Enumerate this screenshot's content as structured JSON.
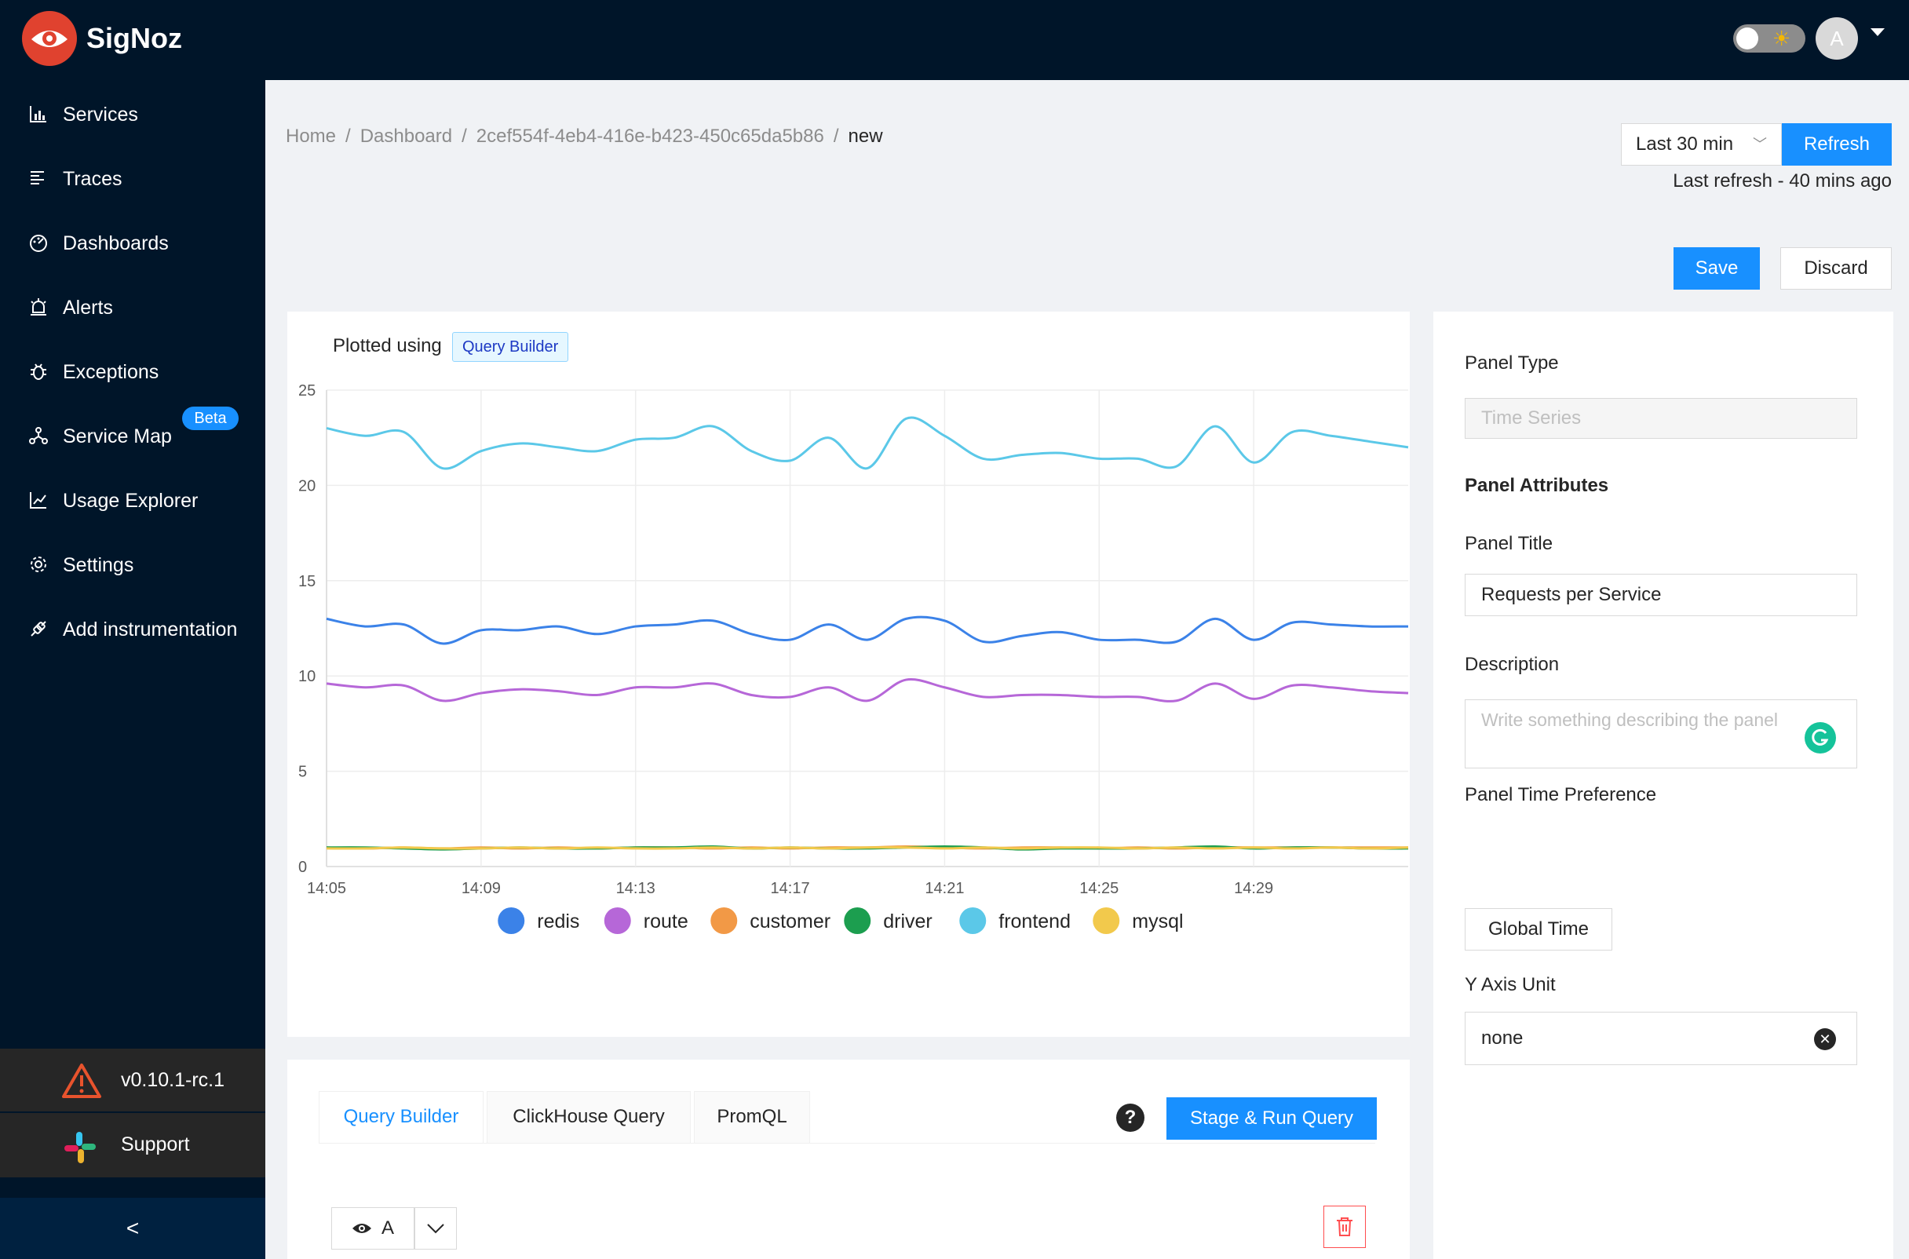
{
  "app": {
    "brand": "SigNoz",
    "avatar_letter": "A"
  },
  "sidebar": {
    "items": [
      {
        "label": "Services",
        "icon": "bar-chart-icon"
      },
      {
        "label": "Traces",
        "icon": "align-left-icon"
      },
      {
        "label": "Dashboards",
        "icon": "dashboard-icon"
      },
      {
        "label": "Alerts",
        "icon": "alert-icon"
      },
      {
        "label": "Exceptions",
        "icon": "bug-icon"
      },
      {
        "label": "Service Map",
        "icon": "deployment-unit-icon"
      },
      {
        "label": "Usage Explorer",
        "icon": "line-chart-icon"
      },
      {
        "label": "Settings",
        "icon": "settings-icon"
      },
      {
        "label": "Add instrumentation",
        "icon": "api-icon"
      }
    ],
    "beta_badge": "Beta",
    "version": "v0.10.1-rc.1",
    "support": "Support",
    "collapse": "<"
  },
  "breadcrumb": {
    "home": "Home",
    "dashboard": "Dashboard",
    "id": "2cef554f-4eb4-416e-b423-450c65da5b86",
    "current": "new",
    "separator": "/"
  },
  "toolbar": {
    "time_range": "Last 30 min",
    "refresh": "Refresh",
    "last_refresh": "Last refresh - 40 mins ago",
    "save": "Save",
    "discard": "Discard"
  },
  "chart_header": {
    "plotted_using": "Plotted using",
    "source_tag": "Query Builder"
  },
  "chart_data": {
    "type": "line",
    "x": [
      "14:05",
      "14:06",
      "14:07",
      "14:08",
      "14:09",
      "14:10",
      "14:11",
      "14:12",
      "14:13",
      "14:14",
      "14:15",
      "14:16",
      "14:17",
      "14:18",
      "14:19",
      "14:20",
      "14:21",
      "14:22",
      "14:23",
      "14:24",
      "14:25",
      "14:26",
      "14:27",
      "14:28",
      "14:29",
      "14:30",
      "14:31",
      "14:32",
      "14:33"
    ],
    "xticks": [
      "14:05",
      "14:09",
      "14:13",
      "14:17",
      "14:21",
      "14:25",
      "14:29"
    ],
    "ylim": [
      0,
      25
    ],
    "yticks": [
      0,
      5,
      10,
      15,
      20,
      25
    ],
    "grid": true,
    "legend_position": "bottom",
    "series": [
      {
        "name": "redis",
        "color": "#3b82e8",
        "values": [
          13.0,
          12.6,
          12.7,
          11.7,
          12.4,
          12.4,
          12.6,
          12.2,
          12.6,
          12.7,
          12.9,
          12.2,
          11.9,
          12.7,
          11.9,
          13.0,
          12.9,
          11.8,
          12.1,
          12.3,
          11.9,
          11.9,
          11.8,
          13.0,
          11.9,
          12.8,
          12.7,
          12.6,
          12.6
        ]
      },
      {
        "name": "route",
        "color": "#b667d8",
        "values": [
          9.6,
          9.4,
          9.5,
          8.7,
          9.1,
          9.3,
          9.2,
          9.0,
          9.4,
          9.4,
          9.6,
          9.0,
          8.9,
          9.4,
          8.7,
          9.8,
          9.4,
          8.9,
          9.0,
          9.0,
          8.9,
          8.9,
          8.7,
          9.6,
          8.8,
          9.5,
          9.4,
          9.2,
          9.1
        ]
      },
      {
        "name": "customer",
        "color": "#f29946",
        "values": [
          1.0,
          0.95,
          1.0,
          0.95,
          1.0,
          0.95,
          1.0,
          0.95,
          1.0,
          1.0,
          0.95,
          1.0,
          0.95,
          1.0,
          1.0,
          1.05,
          1.0,
          0.95,
          1.0,
          1.0,
          0.95,
          1.0,
          0.95,
          1.0,
          1.0,
          1.0,
          1.0,
          1.0,
          1.0
        ]
      },
      {
        "name": "driver",
        "color": "#1c9e4f",
        "values": [
          1.0,
          1.0,
          0.95,
          0.9,
          0.95,
          1.0,
          0.95,
          0.95,
          1.0,
          1.0,
          1.05,
          0.95,
          1.0,
          0.95,
          0.95,
          1.0,
          1.05,
          1.0,
          0.9,
          0.95,
          0.95,
          0.95,
          1.0,
          1.05,
          0.95,
          1.0,
          1.0,
          0.95,
          0.95
        ]
      },
      {
        "name": "frontend",
        "color": "#5bc8e8",
        "values": [
          23.0,
          22.6,
          22.8,
          20.9,
          21.8,
          22.2,
          22.0,
          21.8,
          22.4,
          22.5,
          23.1,
          21.8,
          21.3,
          22.5,
          20.9,
          23.5,
          22.6,
          21.4,
          21.6,
          21.7,
          21.4,
          21.4,
          21.0,
          23.1,
          21.2,
          22.8,
          22.6,
          22.3,
          22.0
        ]
      },
      {
        "name": "mysql",
        "color": "#f2c94c",
        "values": [
          0.95,
          0.95,
          1.0,
          0.95,
          0.95,
          1.0,
          0.95,
          1.0,
          0.95,
          0.95,
          1.0,
          0.95,
          1.0,
          0.95,
          1.0,
          1.0,
          0.95,
          1.0,
          0.95,
          1.0,
          1.0,
          0.95,
          1.0,
          0.95,
          1.0,
          0.95,
          1.0,
          0.95,
          1.0
        ]
      }
    ]
  },
  "query_tabs": {
    "builder": "Query Builder",
    "clickhouse": "ClickHouse Query",
    "promql": "PromQL",
    "help": "?",
    "stage_run": "Stage & Run Query",
    "query_name": "A"
  },
  "panel": {
    "type_label": "Panel Type",
    "type_value": "Time Series",
    "attributes_heading": "Panel Attributes",
    "title_label": "Panel Title",
    "title_value": "Requests per Service",
    "description_label": "Description",
    "description_placeholder": "Write something describing the  panel",
    "time_pref_label": "Panel Time Preference",
    "time_pref_value": "Global Time",
    "y_unit_label": "Y Axis Unit",
    "y_unit_value": "none"
  }
}
